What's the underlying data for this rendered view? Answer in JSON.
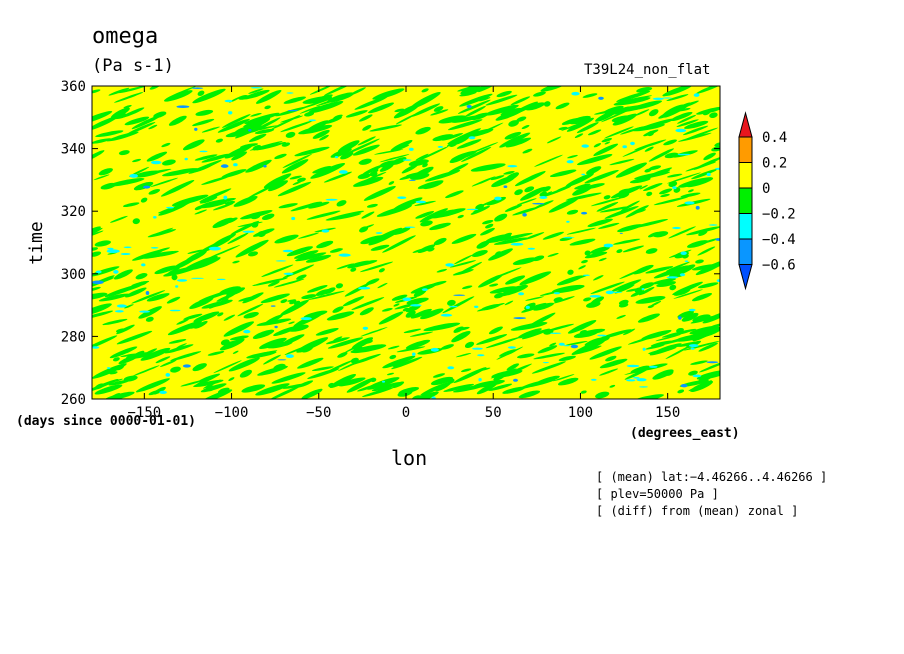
{
  "chart_data": {
    "type": "heatmap",
    "title": "omega",
    "units": "(Pa s-1)",
    "subtitle_right": "T39L24_non_flat",
    "xlabel": "lon",
    "x_units": "(degrees_east)",
    "ylabel": "time",
    "y_units": "(days since 0000-01-01)",
    "xlim": [
      -180,
      180
    ],
    "ylim": [
      260,
      360
    ],
    "x_ticks": [
      -150,
      -100,
      -50,
      0,
      50,
      100,
      150
    ],
    "y_ticks": [
      260,
      280,
      300,
      320,
      340,
      360
    ],
    "colorbar": {
      "levels": [
        -0.6,
        -0.4,
        -0.2,
        0,
        0.2,
        0.4
      ],
      "level_labels": [
        "0.4",
        "0.2",
        "0",
        "−0.2",
        "−0.4",
        "−0.6"
      ],
      "colors": [
        "#e8161e",
        "#ff9b00",
        "#ffff00",
        "#00f000",
        "#00ffff",
        "#0a96ff",
        "#0050ff"
      ]
    },
    "background_color": "#ffff00",
    "annotations": [
      "[ (mean) lat:−4.46266..4.46266 ]",
      "[ plev=50000 Pa ]",
      "[ (diff) from (mean) zonal ]"
    ]
  }
}
